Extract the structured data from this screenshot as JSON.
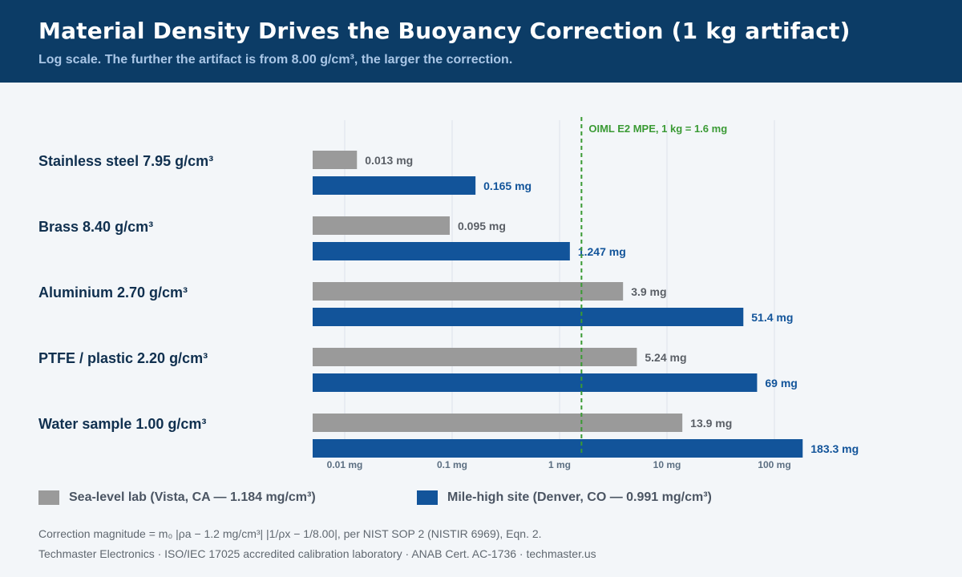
{
  "header": {
    "title": "Material Density Drives the Buoyancy Correction (1 kg artifact)",
    "subtitle": "Log scale. The further the artifact is from 8.00 g/cm³, the larger the correction."
  },
  "chart_data": {
    "type": "bar",
    "orientation": "horizontal",
    "x_scale": "log",
    "xlim": [
      0.007,
      300
    ],
    "x_ticks": [
      0.01,
      0.1,
      1,
      10,
      100
    ],
    "x_tick_labels": [
      "0.01 mg",
      "0.1 mg",
      "1 mg",
      "10 mg",
      "100 mg"
    ],
    "categories": [
      "Stainless steel  7.95 g/cm³",
      "Brass  8.40 g/cm³",
      "Aluminium  2.70 g/cm³",
      "PTFE / plastic  2.20 g/cm³",
      "Water sample  1.00 g/cm³"
    ],
    "series": [
      {
        "name": "Sea-level lab (Vista, CA — 1.184 mg/cm³)",
        "color": "#9a9a9a",
        "values": [
          0.013,
          0.095,
          3.9,
          5.24,
          13.9
        ],
        "labels": [
          "0.013 mg",
          "0.095 mg",
          "3.9 mg",
          "5.24 mg",
          "13.9 mg"
        ]
      },
      {
        "name": "Mile-high site (Denver, CO — 0.991 mg/cm³)",
        "color": "#12549a",
        "values": [
          0.165,
          1.247,
          51.4,
          69,
          183.3
        ],
        "labels": [
          "0.165 mg",
          "1.247 mg",
          "51.4 mg",
          "69 mg",
          "183.3 mg"
        ]
      }
    ],
    "reference_line": {
      "value": 1.6,
      "label": "OIML E2 MPE, 1 kg = 1.6 mg",
      "color": "#3a9a34"
    },
    "grid": true,
    "legend_position": "bottom"
  },
  "footer": {
    "note": "Correction magnitude = m₀ |ρa − 1.2 mg/cm³| |1/ρx − 1/8.00|, per NIST SOP 2 (NISTIR 6969), Eqn. 2.",
    "credit": "Techmaster Electronics · ISO/IEC 17025 accredited calibration laboratory · ANAB Cert. AC-1736 · techmaster.us"
  }
}
